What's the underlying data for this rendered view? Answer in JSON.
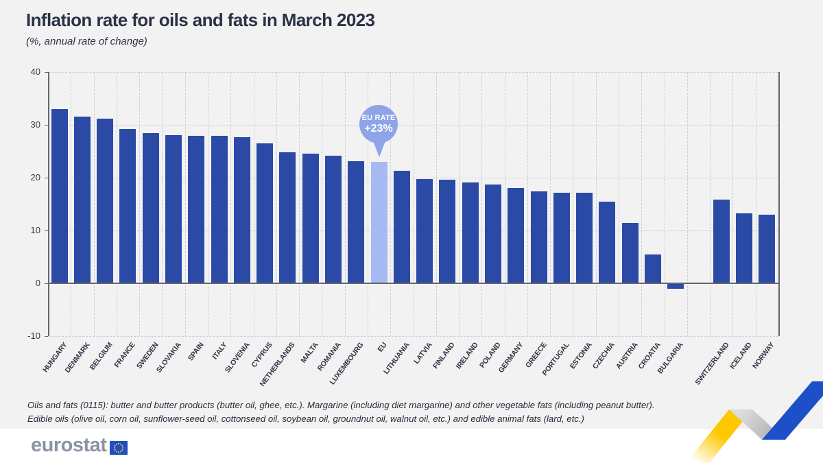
{
  "header": {
    "title": "Inflation rate for oils and fats in March 2023",
    "subtitle": "(%, annual rate of change)"
  },
  "callout": {
    "line1": "EU RATE",
    "line2": "+23%"
  },
  "chart_data": {
    "type": "bar",
    "title": "Inflation rate for oils and fats in March 2023",
    "subtitle": "(%, annual rate of change)",
    "ylabel": "% annual rate of change",
    "ylim": [
      -10,
      40
    ],
    "yticks": [
      40,
      30,
      20,
      10,
      0,
      -10
    ],
    "grid": "dashed",
    "legend": "none",
    "categories": [
      "HUNGARY",
      "DENMARK",
      "BELGIUM",
      "FRANCE",
      "SWEDEN",
      "SLOVAKIA",
      "SPAIN",
      "ITALY",
      "SLOVENIA",
      "CYPRUS",
      "NETHERLANDS",
      "MALTA",
      "ROMANIA",
      "LUXEMBOURG",
      "EU",
      "LITHUANIA",
      "LATVIA",
      "FINLAND",
      "IRELAND",
      "POLAND",
      "GERMANY",
      "GREECE",
      "PORTUGAL",
      "ESTONIA",
      "CZECHIA",
      "AUSTRIA",
      "CROATIA",
      "BULGARIA",
      "SWITZERLAND",
      "ICELAND",
      "NORWAY"
    ],
    "values": [
      33.0,
      31.5,
      31.2,
      29.2,
      28.5,
      28.1,
      27.9,
      27.9,
      27.7,
      26.5,
      24.8,
      24.5,
      24.2,
      23.1,
      23.0,
      21.3,
      19.8,
      19.6,
      19.1,
      18.7,
      18.0,
      17.4,
      17.2,
      17.1,
      15.5,
      11.4,
      5.5,
      -1.0,
      15.8,
      13.2,
      13.0
    ],
    "highlight_index": 14,
    "gap_before_index": 28,
    "annotation": "EU RATE +23%"
  },
  "footnote": {
    "line1": "Oils and fats (0115): butter and butter products (butter oil, ghee, etc.). Margarine (including diet margarine) and other vegetable fats (including peanut butter).",
    "line2": "Edible oils (olive oil, corn oil, sunflower-seed oil, cottonseed oil, soybean oil, groundnut oil, walnut oil, etc.) and edible animal fats (lard, etc.)"
  },
  "logo": {
    "text": "eurostat"
  },
  "colors": {
    "background": "#f2f2f2",
    "bar": "#2b4aa6",
    "bar_highlight": "#a6b9f2",
    "balloon": "#8da4e9",
    "title_text": "#2b3245",
    "grid": "#cbcdd2",
    "axis": "#63666d",
    "logo_gray": "#8b93a2",
    "flag_blue": "#1d4fc8",
    "flag_star_yellow": "#ffcc00",
    "zigzag_yellow": "#fdc800",
    "zigzag_gray": "#b9b9b9",
    "zigzag_blue": "#1d4fc8"
  }
}
